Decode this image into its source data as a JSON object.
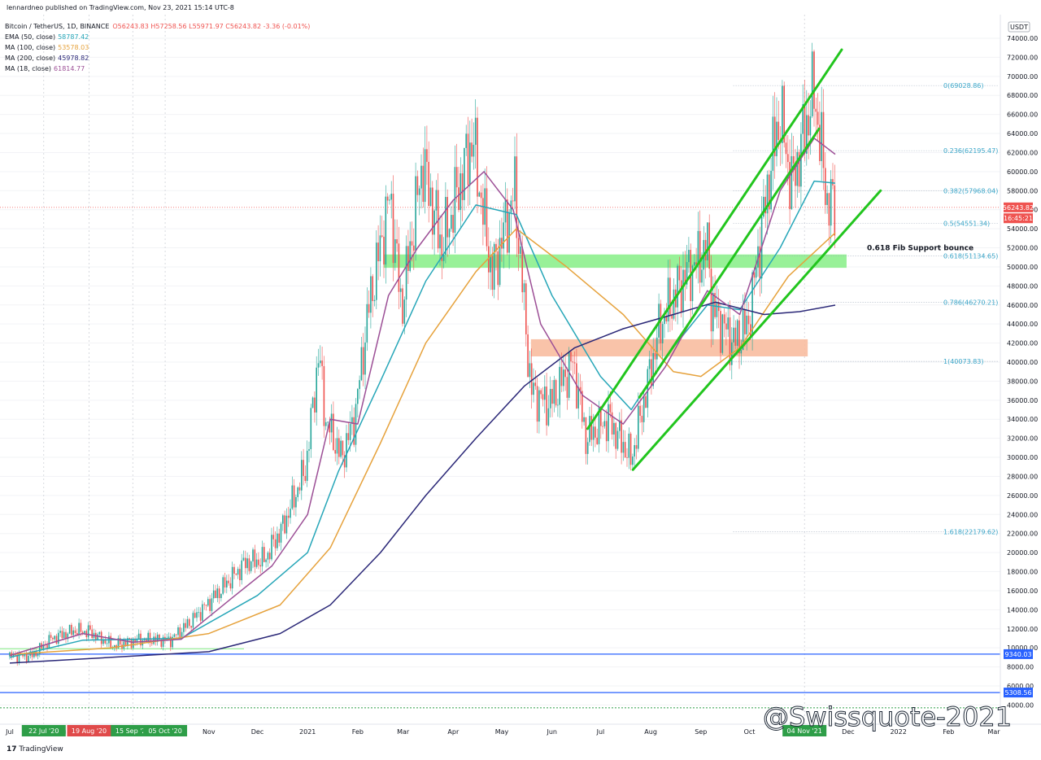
{
  "publisher_line": "lennardneo published on TradingView.com, Nov 23, 2021 15:14 UTC-8",
  "symbol": {
    "label": "Bitcoin / TetherUS, 1D, BINANCE",
    "ohlc": "O56243.83  H57258.56  L55971.97  C56243.82  -3.36 (-0.01%)"
  },
  "indicators": [
    {
      "label": "EMA (50, close)",
      "value": "58787.42",
      "color": "#26a6b8"
    },
    {
      "label": "MA (100, close)",
      "value": "53578.03",
      "color": "#e6a23c"
    },
    {
      "label": "MA (200, close)",
      "value": "45978.82",
      "color": "#2a2777"
    },
    {
      "label": "MA (18, close)",
      "value": "61814.77",
      "color": "#9c4f96"
    }
  ],
  "footer": {
    "logo": "TradingView"
  },
  "watermark": "@Swissquote-2021",
  "chart_data": {
    "type": "candlestick",
    "y_axis": {
      "unit": "USDT",
      "range": [
        3000,
        76000
      ],
      "tick_values": [
        4000,
        6000,
        8000,
        10000,
        12000,
        14000,
        16000,
        18000,
        20000,
        22000,
        24000,
        26000,
        28000,
        30000,
        32000,
        34000,
        36000,
        38000,
        40000,
        42000,
        44000,
        46000,
        48000,
        50000,
        52000,
        54000,
        56000,
        58000,
        60000,
        62000,
        64000,
        66000,
        68000,
        70000,
        72000,
        74000
      ],
      "tick_labels": [
        "4000.00",
        "6000.00",
        "8000.00",
        "10000.00",
        "12000.00",
        "14000.00",
        "16000.00",
        "18000.00",
        "20000.00",
        "22000.00",
        "24000.00",
        "26000.00",
        "28000.00",
        "30000.00",
        "32000.00",
        "34000.00",
        "36000.00",
        "38000.00",
        "40000.00",
        "42000.00",
        "44000.00",
        "46000.00",
        "48000.00",
        "50000.00",
        "52000.00",
        "54000.00",
        "56000.00",
        "58000.00",
        "60000.00",
        "62000.00",
        "64000.00",
        "66000.00",
        "68000.00",
        "70000.00",
        "72000.00",
        "74000.00"
      ]
    },
    "x_axis": {
      "labels": [
        "Jul",
        "Aug",
        "Sep",
        "Oct",
        "Nov",
        "Dec",
        "2021",
        "Feb",
        "Mar",
        "Apr",
        "May",
        "Jun",
        "Jul",
        "Aug",
        "Sep",
        "Oct",
        "Dec",
        "2022",
        "Feb",
        "Mar"
      ],
      "date_badges": [
        {
          "text": "22 Jul '20",
          "date": "2020-07-22",
          "color": "#2e9e48"
        },
        {
          "text": "19 Aug '20",
          "date": "2020-08-19",
          "color": "#e04a4a"
        },
        {
          "text": "15 Sep '20",
          "date": "2020-09-15",
          "color": "#2e9e48"
        },
        {
          "text": "05 Oct '20",
          "date": "2020-10-05",
          "color": "#2e9e48"
        },
        {
          "text": "04 Nov '21",
          "date": "2021-11-04",
          "color": "#2e9e48"
        }
      ]
    },
    "price_tags": [
      {
        "text": "USDT",
        "value": 75000,
        "bg": "#ffffff",
        "fg": "#131722"
      },
      {
        "text": "56243.82",
        "value": 56243.82,
        "bg": "#ef5350",
        "fg": "#ffffff"
      },
      {
        "text": "16:45:21",
        "value": 55100,
        "bg": "#ef5350",
        "fg": "#ffffff"
      },
      {
        "text": "9340.03",
        "value": 9340.03,
        "bg": "#2962ff",
        "fg": "#ffffff"
      },
      {
        "text": "5308.56",
        "value": 5308.56,
        "bg": "#2962ff",
        "fg": "#ffffff"
      }
    ],
    "fib_levels": [
      {
        "label": "0(69028.86)",
        "value": 69028.86
      },
      {
        "label": "0.236(62195.47)",
        "value": 62195.47
      },
      {
        "label": "0.382(57968.04)",
        "value": 57968.04
      },
      {
        "label": "0.5(54551.34)",
        "value": 54551.34
      },
      {
        "label": "0.618(51134.65)",
        "value": 51134.65
      },
      {
        "label": "0.786(46270.21)",
        "value": 46270.21
      },
      {
        "label": "1(40073.83)",
        "value": 40073.83
      },
      {
        "label": "1.618(22179.62)",
        "value": 22179.62
      }
    ],
    "annotation": {
      "text": "0.618 Fib Support bounce",
      "value": 52000
    },
    "zones": [
      {
        "name": "support-zone",
        "y_range": [
          49900,
          51300
        ],
        "color": "#86ee86"
      },
      {
        "name": "demand-zone",
        "y_range": [
          40600,
          42400
        ],
        "color": "#f8b89a"
      }
    ],
    "horizontal_lines": [
      {
        "value": 9340.03,
        "color": "#2962ff"
      },
      {
        "value": 5308.56,
        "color": "#2962ff"
      },
      {
        "value": 3700,
        "color": "#2e9e48",
        "dashed": true
      }
    ],
    "candles_close_path": [
      [
        "2020-07-01",
        9100
      ],
      [
        "2020-07-15",
        9200
      ],
      [
        "2020-07-27",
        11000
      ],
      [
        "2020-08-10",
        11800
      ],
      [
        "2020-08-19",
        11700
      ],
      [
        "2020-09-03",
        10200
      ],
      [
        "2020-09-20",
        10900
      ],
      [
        "2020-10-08",
        10800
      ],
      [
        "2020-10-21",
        12800
      ],
      [
        "2020-11-05",
        15500
      ],
      [
        "2020-11-24",
        19000
      ],
      [
        "2020-12-05",
        19200
      ],
      [
        "2020-12-17",
        22800
      ],
      [
        "2020-12-31",
        29000
      ],
      [
        "2021-01-08",
        41000
      ],
      [
        "2021-01-12",
        34000
      ],
      [
        "2021-01-22",
        30000
      ],
      [
        "2021-01-30",
        34000
      ],
      [
        "2021-02-08",
        46000
      ],
      [
        "2021-02-21",
        57500
      ],
      [
        "2021-02-28",
        45500
      ],
      [
        "2021-03-13",
        61000
      ],
      [
        "2021-03-25",
        52000
      ],
      [
        "2021-04-13",
        63500
      ],
      [
        "2021-04-25",
        49000
      ],
      [
        "2021-05-09",
        58000
      ],
      [
        "2021-05-19",
        37000
      ],
      [
        "2021-05-30",
        35500
      ],
      [
        "2021-06-14",
        40000
      ],
      [
        "2021-06-22",
        32000
      ],
      [
        "2021-07-06",
        34000
      ],
      [
        "2021-07-20",
        29800
      ],
      [
        "2021-08-07",
        44000
      ],
      [
        "2021-08-22",
        49000
      ],
      [
        "2021-09-06",
        52000
      ],
      [
        "2021-09-07",
        46000
      ],
      [
        "2021-09-21",
        42000
      ],
      [
        "2021-09-30",
        43800
      ],
      [
        "2021-10-15",
        61500
      ],
      [
        "2021-10-20",
        66000
      ],
      [
        "2021-10-27",
        58500
      ],
      [
        "2021-11-10",
        68500
      ],
      [
        "2021-11-18",
        57000
      ],
      [
        "2021-11-23",
        56243.82
      ]
    ],
    "series": [
      {
        "name": "EMA (50, close)",
        "color": "#26a6b8",
        "points": [
          [
            "2020-07-01",
            9000
          ],
          [
            "2020-08-15",
            10800
          ],
          [
            "2020-10-15",
            11000
          ],
          [
            "2020-12-01",
            15500
          ],
          [
            "2021-01-01",
            20000
          ],
          [
            "2021-01-20",
            28500
          ],
          [
            "2021-02-15",
            38000
          ],
          [
            "2021-03-15",
            48500
          ],
          [
            "2021-04-15",
            56500
          ],
          [
            "2021-05-10",
            55500
          ],
          [
            "2021-06-01",
            47000
          ],
          [
            "2021-07-01",
            38500
          ],
          [
            "2021-07-20",
            35000
          ],
          [
            "2021-08-10",
            40500
          ],
          [
            "2021-09-05",
            46000
          ],
          [
            "2021-09-25",
            45500
          ],
          [
            "2021-10-20",
            52000
          ],
          [
            "2021-11-10",
            59000
          ],
          [
            "2021-11-23",
            58787.42
          ]
        ]
      },
      {
        "name": "MA (100, close)",
        "color": "#e6a23c",
        "points": [
          [
            "2020-07-01",
            9300
          ],
          [
            "2020-09-01",
            10000
          ],
          [
            "2020-11-01",
            11500
          ],
          [
            "2020-12-15",
            14500
          ],
          [
            "2021-01-15",
            20500
          ],
          [
            "2021-02-15",
            31500
          ],
          [
            "2021-03-15",
            42000
          ],
          [
            "2021-04-15",
            49500
          ],
          [
            "2021-05-10",
            54000
          ],
          [
            "2021-06-10",
            50000
          ],
          [
            "2021-07-15",
            45000
          ],
          [
            "2021-08-15",
            39000
          ],
          [
            "2021-09-01",
            38500
          ],
          [
            "2021-09-25",
            41500
          ],
          [
            "2021-10-25",
            49000
          ],
          [
            "2021-11-23",
            53578.03
          ]
        ]
      },
      {
        "name": "MA (200, close)",
        "color": "#2a2777",
        "points": [
          [
            "2020-07-01",
            8400
          ],
          [
            "2020-09-01",
            9000
          ],
          [
            "2020-11-01",
            9600
          ],
          [
            "2020-12-15",
            11500
          ],
          [
            "2021-01-15",
            14500
          ],
          [
            "2021-02-15",
            20000
          ],
          [
            "2021-03-15",
            26000
          ],
          [
            "2021-04-15",
            32000
          ],
          [
            "2021-05-15",
            37500
          ],
          [
            "2021-06-15",
            41500
          ],
          [
            "2021-07-15",
            43500
          ],
          [
            "2021-08-15",
            45000
          ],
          [
            "2021-09-10",
            46300
          ],
          [
            "2021-10-10",
            45000
          ],
          [
            "2021-11-01",
            45300
          ],
          [
            "2021-11-23",
            45978.82
          ]
        ]
      },
      {
        "name": "MA (18, close)",
        "color": "#9c4f96",
        "points": [
          [
            "2020-07-01",
            9200
          ],
          [
            "2020-08-15",
            11500
          ],
          [
            "2020-09-15",
            10600
          ],
          [
            "2020-10-15",
            10900
          ],
          [
            "2020-11-15",
            15200
          ],
          [
            "2020-12-10",
            18600
          ],
          [
            "2021-01-01",
            24000
          ],
          [
            "2021-01-15",
            34000
          ],
          [
            "2021-02-01",
            33500
          ],
          [
            "2021-02-20",
            47000
          ],
          [
            "2021-03-10",
            52000
          ],
          [
            "2021-04-01",
            57000
          ],
          [
            "2021-04-20",
            60000
          ],
          [
            "2021-05-08",
            56000
          ],
          [
            "2021-05-25",
            44000
          ],
          [
            "2021-06-20",
            36500
          ],
          [
            "2021-07-15",
            33500
          ],
          [
            "2021-08-10",
            39500
          ],
          [
            "2021-09-05",
            47500
          ],
          [
            "2021-09-25",
            45000
          ],
          [
            "2021-10-20",
            58000
          ],
          [
            "2021-11-10",
            63500
          ],
          [
            "2021-11-23",
            61814.77
          ]
        ]
      }
    ],
    "trendlines": [
      {
        "name": "channel-upper",
        "color": "#22c51e",
        "from": [
          "2021-06-23",
          33000
        ],
        "to": [
          "2021-11-27",
          72800
        ]
      },
      {
        "name": "channel-lower",
        "color": "#22c51e",
        "from": [
          "2021-07-21",
          28700
        ],
        "to": [
          "2021-12-21",
          58000
        ]
      },
      {
        "name": "channel-mid",
        "color": "#22c51e",
        "from": [
          "2021-07-25",
          36300
        ],
        "to": [
          "2021-11-13",
          64500
        ]
      }
    ]
  }
}
